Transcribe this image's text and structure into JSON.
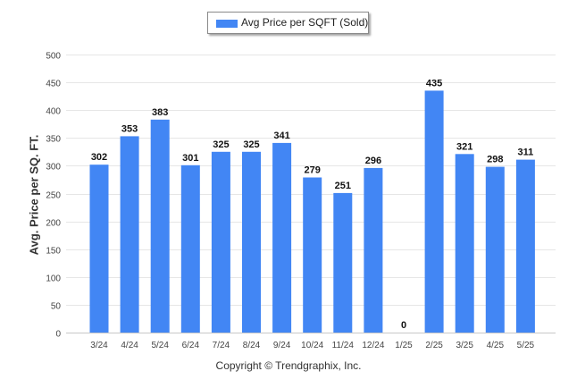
{
  "chart_data": {
    "type": "bar",
    "categories": [
      "3/24",
      "4/24",
      "5/24",
      "6/24",
      "7/24",
      "8/24",
      "9/24",
      "10/24",
      "11/24",
      "12/24",
      "1/25",
      "2/25",
      "3/25",
      "4/25",
      "5/25"
    ],
    "series": [
      {
        "name": "Avg Price per SQFT (Sold)",
        "values": [
          302,
          353,
          383,
          301,
          325,
          325,
          341,
          279,
          251,
          296,
          0,
          435,
          321,
          298,
          311
        ],
        "color": "#4286f4"
      }
    ],
    "data_labels": [
      "302",
      "353",
      "383",
      "301",
      "325",
      "325",
      "341",
      "279",
      "251",
      "296",
      "0",
      "435",
      "321",
      "298",
      "311"
    ],
    "ylabel": "Avg. Price per SQ. FT.",
    "ylim": [
      0,
      500
    ],
    "yticks": [
      0,
      50,
      100,
      150,
      200,
      250,
      300,
      350,
      400,
      450,
      500
    ],
    "grid": true,
    "legend_position": "top-center"
  },
  "footer": "Copyright © Trendgraphix, Inc."
}
